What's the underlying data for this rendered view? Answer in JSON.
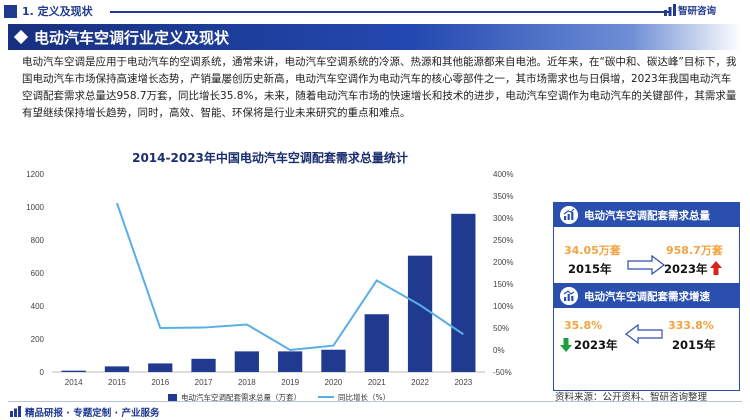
{
  "header": {
    "section": "1. 定义及现状",
    "brand": "智研咨询"
  },
  "banner": {
    "title": "电动汽车空调行业定义及现状"
  },
  "intro": "电动汽车空调是应用于电动汽车的空调系统，通常来讲，电动汽车空调系统的冷源、热源和其他能源都来自电池。近年来，在“碳中和、碳达峰”目标下，我国电动汽车市场保持高速增长态势，产销量屡创历史新高，电动汽车空调作为电动汽车的核心零部件之一，其市场需求也与日俱增，2023年我国电动汽车空调配套需求总量达958.7万套，同比增长35.8%，未来，随着电动汽车市场的快速增长和技术的进步，电动汽车空调作为电动汽车的关键部件，其需求量有望继续保持增长趋势，同时，高效、智能、环保将是行业未来研究的重点和难点。",
  "chart_data": {
    "type": "bar",
    "title": "2014-2023年中国电动汽车空调配套需求总量统计",
    "categories": [
      "2014",
      "2015",
      "2016",
      "2017",
      "2018",
      "2019",
      "2020",
      "2021",
      "2022",
      "2023"
    ],
    "series": [
      {
        "name": "电动汽车空调配套需求总量（万套）",
        "type": "bar",
        "axis": "left",
        "color": "#1f3a8f",
        "values": [
          8,
          34,
          52,
          80,
          125,
          125,
          135,
          350,
          705,
          958.7
        ]
      },
      {
        "name": "同比增长（%）",
        "type": "line",
        "axis": "right",
        "color": "#5aaee6",
        "values": [
          null,
          333.8,
          50,
          51,
          58,
          0,
          10,
          158,
          102,
          35.8
        ]
      }
    ],
    "ylim_left": [
      0,
      1200
    ],
    "yticks_left": [
      "0",
      "200",
      "400",
      "600",
      "800",
      "1000",
      "1200"
    ],
    "ylim_right": [
      -50,
      400
    ],
    "yticks_right": [
      "-50%",
      "0%",
      "50%",
      "100%",
      "150%",
      "200%",
      "250%",
      "300%",
      "350%",
      "400%"
    ],
    "grid": false,
    "legend": "bottom"
  },
  "card1": {
    "title": "电动汽车空调配套需求总量",
    "from_value": "34.05万套",
    "from_year": "2015年",
    "to_value": "958.7万套",
    "to_year": "2023年"
  },
  "card2": {
    "title": "电动汽车空调配套需求增速",
    "left_value": "35.8%",
    "left_year": "2023年",
    "right_value": "333.8%",
    "right_year": "2015年"
  },
  "source": "资料来源：公开资料、智研咨询整理",
  "footer": {
    "text": "精品研报 · 专题定制 · 产业服务"
  },
  "colors": {
    "primary": "#1f3a8f",
    "line": "#5aaee6",
    "accent": "#f4a340",
    "up": "#d9261c",
    "down": "#1e9e3e"
  }
}
